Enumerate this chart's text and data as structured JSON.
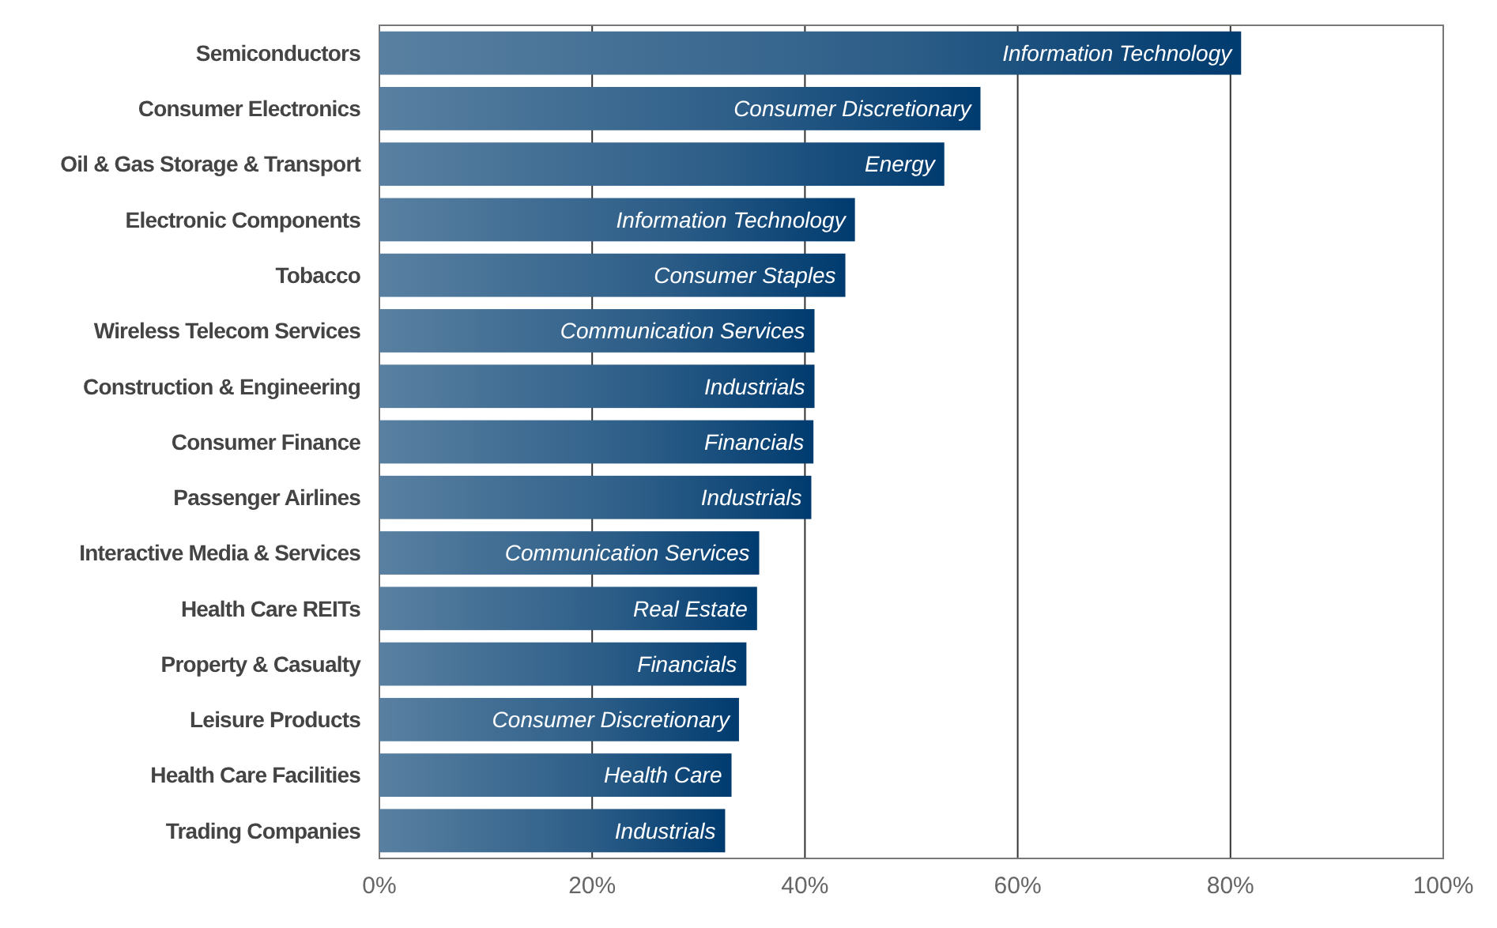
{
  "chart_data": {
    "type": "bar",
    "orientation": "horizontal",
    "categories": [
      "Semiconductors",
      "Consumer Electronics",
      "Oil & Gas Storage & Transport",
      "Electronic Components",
      "Tobacco",
      "Wireless Telecom Services",
      "Construction & Engineering",
      "Consumer Finance",
      "Passenger Airlines",
      "Interactive Media & Services",
      "Health Care REITs",
      "Property & Casualty",
      "Leisure Products",
      "Health Care Facilities",
      "Trading Companies"
    ],
    "values": [
      81.0,
      56.5,
      53.1,
      44.7,
      43.8,
      40.9,
      40.9,
      40.8,
      40.6,
      35.7,
      35.5,
      34.5,
      33.8,
      33.1,
      32.5
    ],
    "color": "#003b6f",
    "xlim": [
      0,
      100
    ],
    "xticks": [
      {
        "value": 0,
        "label": "0%"
      },
      {
        "value": 20,
        "label": "20%"
      },
      {
        "value": 40,
        "label": "40%"
      },
      {
        "value": 60,
        "label": "60%"
      },
      {
        "value": 80,
        "label": "80%"
      },
      {
        "value": 100,
        "label": "100%"
      }
    ],
    "grid": "x",
    "annotations": [
      {
        "text": "Information Technology",
        "x": 81.0,
        "y": "Semiconductors"
      },
      {
        "text": "Consumer Discretionary",
        "x": 56.5,
        "y": "Consumer Electronics"
      },
      {
        "text": "Energy",
        "x": 53.1,
        "y": "Oil & Gas Storage & Transport"
      },
      {
        "text": "Information Technology",
        "x": 44.7,
        "y": "Electronic Components"
      },
      {
        "text": "Consumer Staples",
        "x": 43.8,
        "y": "Tobacco"
      },
      {
        "text": "Communication Services",
        "x": 40.9,
        "y": "Wireless Telecom Services"
      },
      {
        "text": "Industrials",
        "x": 40.9,
        "y": "Construction & Engineering"
      },
      {
        "text": "Financials",
        "x": 40.8,
        "y": "Consumer Finance"
      },
      {
        "text": "Industrials",
        "x": 40.6,
        "y": "Passenger Airlines"
      },
      {
        "text": "Communication Services",
        "x": 35.7,
        "y": "Interactive Media & Services"
      },
      {
        "text": "Real Estate",
        "x": 35.5,
        "y": "Health Care REITs"
      },
      {
        "text": "Financials",
        "x": 34.5,
        "y": "Property & Casualty"
      },
      {
        "text": "Consumer Discretionary",
        "x": 33.8,
        "y": "Leisure Products"
      },
      {
        "text": "Health Care",
        "x": 33.1,
        "y": "Health Care Facilities"
      },
      {
        "text": "Industrials",
        "x": 32.5,
        "y": "Trading Companies"
      }
    ]
  }
}
